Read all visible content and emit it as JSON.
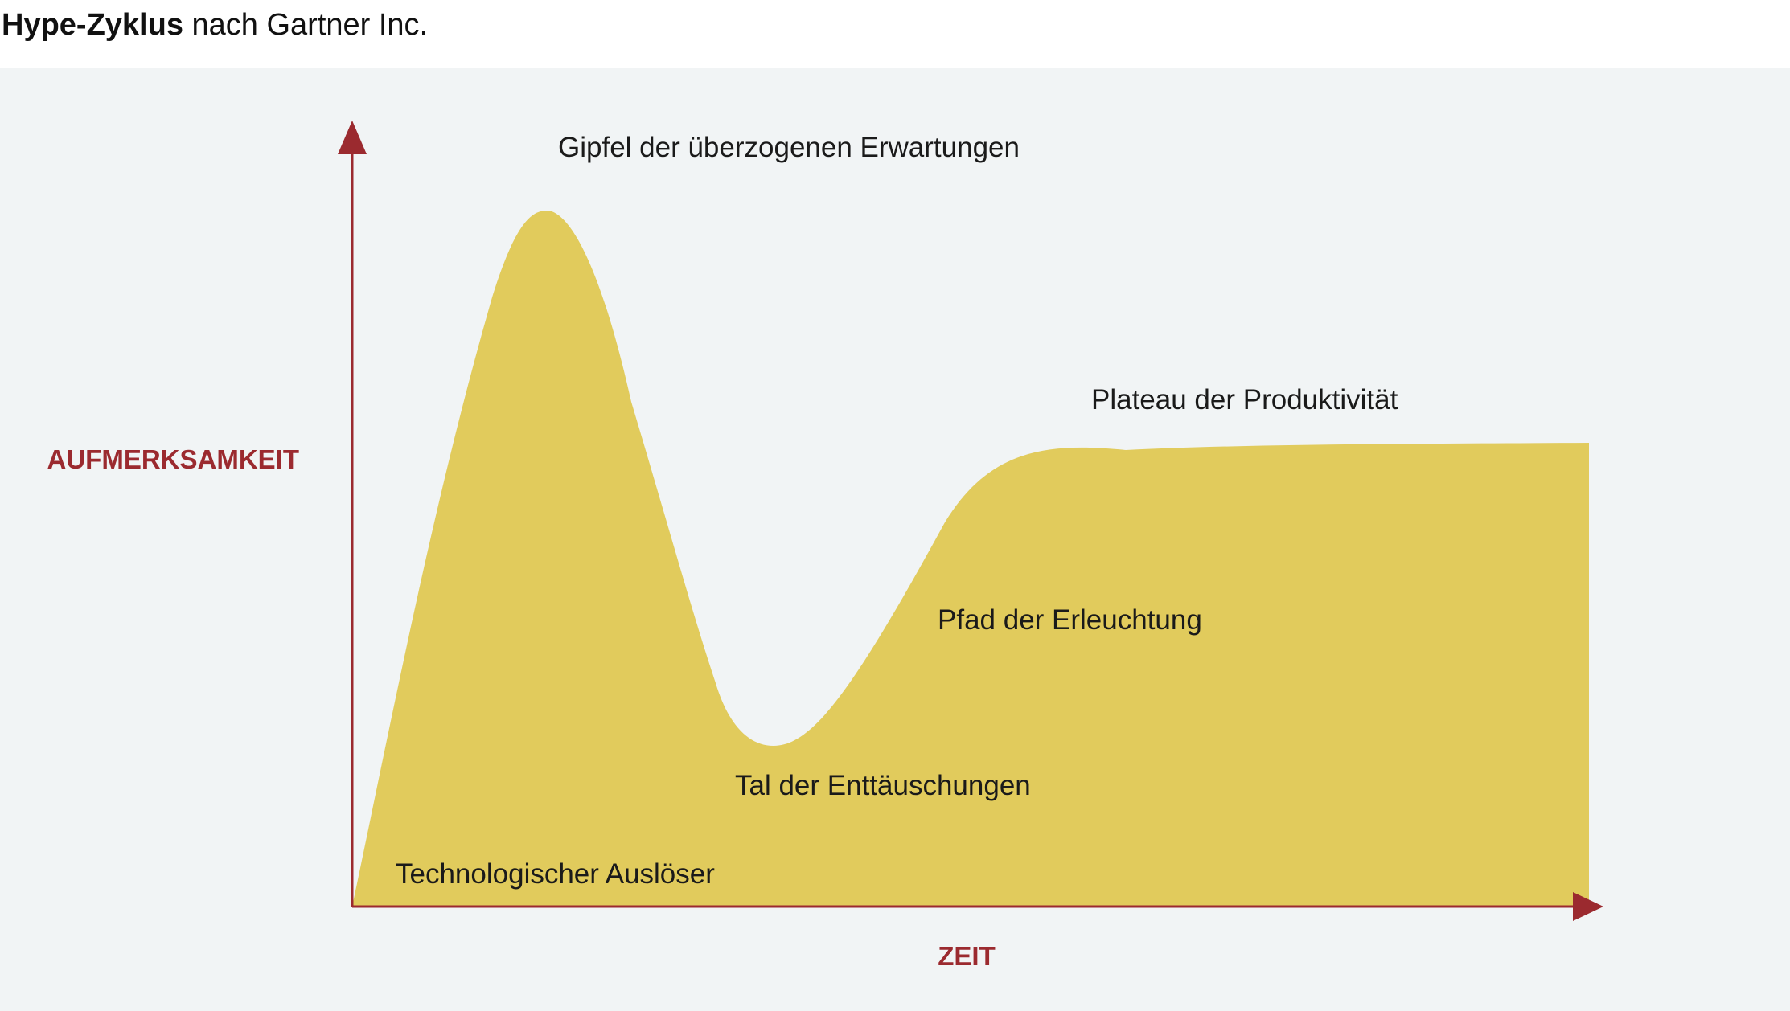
{
  "title": {
    "bold": "Hype-Zyklus",
    "normal": " nach Gartner Inc."
  },
  "axes": {
    "y_label": "AUFMERKSAMKEIT",
    "x_label": "ZEIT"
  },
  "phases": {
    "trigger": "Technologischer Auslöser",
    "peak": "Gipfel der überzogenen Erwartungen",
    "trough": "Tal der Enttäuschungen",
    "slope": "Pfad der Erleuchtung",
    "plateau": "Plateau der Produktivität"
  },
  "colors": {
    "curve_fill": "#e1cb5c",
    "axis": "#9b2a2f",
    "axis_label": "#9b2a2f",
    "background": "#f1f4f5"
  }
}
